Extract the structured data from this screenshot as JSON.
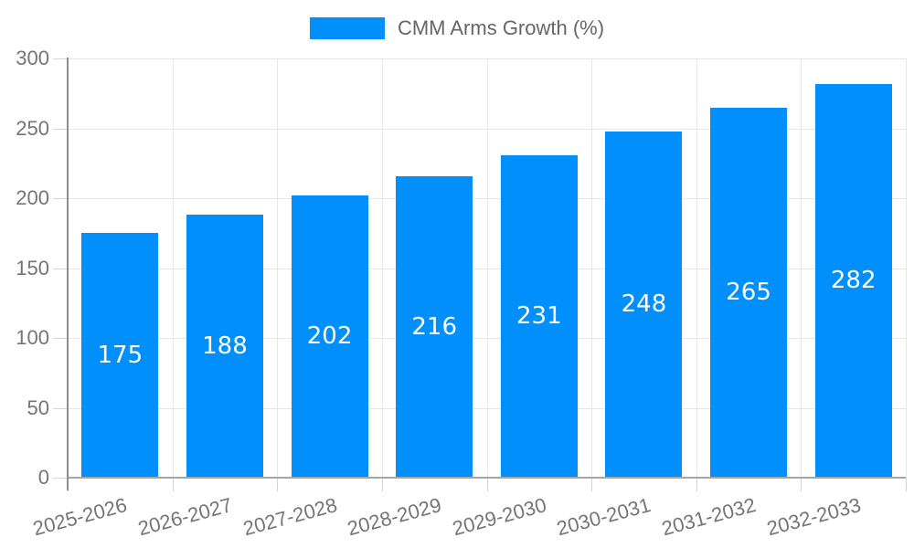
{
  "chart_data": {
    "type": "bar",
    "title": "",
    "legend": {
      "label": "CMM Arms Growth (%)",
      "position": "top",
      "marker_color": "#008FFB"
    },
    "categories": [
      "2025-2026",
      "2026-2027",
      "2027-2028",
      "2028-2029",
      "2029-2030",
      "2030-2031",
      "2031-2032",
      "2032-2033"
    ],
    "series": [
      {
        "name": "CMM Arms Growth (%)",
        "values": [
          175,
          188,
          202,
          216,
          231,
          248,
          265,
          282
        ]
      }
    ],
    "value_labels": [
      "175",
      "188",
      "202",
      "216",
      "231",
      "248",
      "265",
      "282"
    ],
    "ylim": [
      0,
      300
    ],
    "yticks": [
      0,
      50,
      100,
      150,
      200,
      250,
      300
    ],
    "grid": true,
    "colors": {
      "bar": "#008FFB",
      "value_label": "#ffffff",
      "axis_line": "#8e8e8e",
      "grid_line": "#e7e7e7",
      "tick_line": "#d4d4d4",
      "axis_label": "#757575",
      "legend_text": "#666666",
      "background": "#ffffff"
    }
  }
}
